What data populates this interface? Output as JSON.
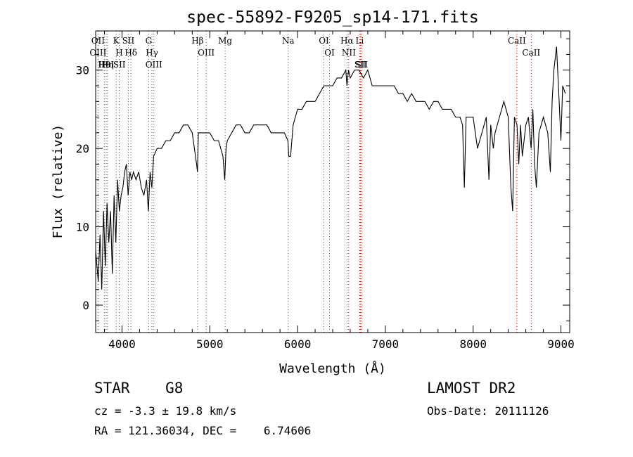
{
  "header": {
    "title": "spec-55892-F9205_sp14-171.fits"
  },
  "chart_data": {
    "type": "line",
    "title": "spec-55892-F9205_sp14-171.fits",
    "xlabel": "Wavelength (Å)",
    "ylabel": "Flux (relative)",
    "xlim": [
      3700,
      9100
    ],
    "ylim": [
      -3.5,
      35
    ],
    "xticks": [
      4000,
      5000,
      6000,
      7000,
      8000,
      9000
    ],
    "yticks": [
      0,
      10,
      20,
      30
    ],
    "grid": false,
    "line_color": "#000000",
    "marker_line_color": "#cc0000",
    "series": [
      {
        "x": [
          3700,
          3730,
          3750,
          3770,
          3790,
          3810,
          3830,
          3850,
          3870,
          3890,
          3910,
          3930,
          3950,
          3970,
          3990,
          4010,
          4030,
          4050,
          4070,
          4090,
          4110,
          4130,
          4160,
          4190,
          4220,
          4250,
          4280,
          4300,
          4320,
          4340,
          4360,
          4400,
          4450,
          4500,
          4550,
          4600,
          4650,
          4700,
          4750,
          4800,
          4850,
          4860,
          4870,
          4900,
          4950,
          5000,
          5050,
          5100,
          5150,
          5170,
          5185,
          5200,
          5250,
          5300,
          5350,
          5400,
          5450,
          5500,
          5550,
          5600,
          5650,
          5700,
          5750,
          5800,
          5850,
          5890,
          5900,
          5920,
          5950,
          6000,
          6050,
          6100,
          6150,
          6200,
          6250,
          6300,
          6350,
          6400,
          6450,
          6500,
          6550,
          6563,
          6580,
          6600,
          6650,
          6700,
          6750,
          6800,
          6850,
          6900,
          6950,
          7000,
          7050,
          7100,
          7150,
          7200,
          7250,
          7300,
          7350,
          7400,
          7450,
          7500,
          7550,
          7600,
          7650,
          7700,
          7750,
          7800,
          7850,
          7880,
          7900,
          7920,
          7950,
          8000,
          8050,
          8100,
          8150,
          8180,
          8200,
          8230,
          8250,
          8300,
          8350,
          8400,
          8430,
          8450,
          8470,
          8500,
          8520,
          8540,
          8560,
          8600,
          8630,
          8660,
          8680,
          8700,
          8720,
          8750,
          8800,
          8850,
          8880,
          8900,
          8920,
          8950,
          8980,
          9000,
          9020,
          9050
        ],
        "y": [
          7,
          3,
          9,
          2,
          12,
          5,
          13,
          8,
          12,
          4,
          14,
          8,
          16,
          12,
          14,
          15,
          17,
          18,
          14,
          17,
          16,
          17,
          16,
          17,
          15,
          14,
          16,
          12,
          17,
          15,
          19,
          20,
          20,
          21,
          21,
          22,
          22,
          23,
          23,
          22,
          18,
          17,
          22,
          22,
          22,
          22,
          21,
          21,
          19,
          16,
          20,
          21,
          22,
          23,
          23,
          22,
          22,
          23,
          23,
          23,
          23,
          22,
          22,
          22,
          22,
          21,
          19,
          19,
          23,
          25,
          25,
          26,
          26,
          26,
          27,
          28,
          28,
          28,
          29,
          29,
          30,
          28,
          30,
          29,
          30,
          30,
          29,
          30,
          28,
          28,
          28,
          28,
          28,
          28,
          27,
          27,
          26,
          27,
          26,
          26,
          26,
          25,
          26,
          26,
          25,
          25,
          25,
          24,
          24,
          23,
          15,
          24,
          24,
          24,
          20,
          22,
          24,
          16,
          23,
          20,
          22,
          24,
          26,
          24,
          15,
          12,
          24,
          23,
          18,
          23,
          19,
          23,
          24,
          20,
          25,
          18,
          15,
          22,
          24,
          22,
          17,
          26,
          30,
          33,
          26,
          21,
          28,
          27
        ]
      }
    ],
    "line_markers": [
      {
        "label": "Hθ",
        "x": 3798
      },
      {
        "label": "OII",
        "x": 3727
      },
      {
        "label": "OIII",
        "x": 3727
      },
      {
        "label": "HeI",
        "x": 3820
      },
      {
        "label": "Hη",
        "x": 3835
      },
      {
        "label": "K",
        "x": 3934
      },
      {
        "label": "SII",
        "x": 3970
      },
      {
        "label": "H",
        "x": 3969
      },
      {
        "label": "Hδ",
        "x": 4102
      },
      {
        "label": "SII",
        "x": 4072
      },
      {
        "label": "OIII",
        "x": 4363
      },
      {
        "label": "Hγ",
        "x": 4341
      },
      {
        "label": "G",
        "x": 4304
      },
      {
        "label": "Hβ",
        "x": 4861
      },
      {
        "label": "OIII",
        "x": 4959
      },
      {
        "label": "Mg",
        "x": 5175
      },
      {
        "label": "Na",
        "x": 5893
      },
      {
        "label": "OI",
        "x": 6300
      },
      {
        "label": "OI",
        "x": 6364
      },
      {
        "label": "Hα",
        "x": 6563
      },
      {
        "label": "NII",
        "x": 6583
      },
      {
        "label": "Li",
        "x": 6708
      },
      {
        "label": "SII",
        "x": 6717
      },
      {
        "label": "SII",
        "x": 6731
      },
      {
        "label": "CaII",
        "x": 8498
      },
      {
        "label": "CaII",
        "x": 8662
      }
    ]
  },
  "info": {
    "star_type": "STAR    G8",
    "survey": "LAMOST DR2",
    "cz": "cz = -3.3 ± 19.8 km/s",
    "obs_date": "Obs-Date: 20111126",
    "radec": "RA = 121.36034, DEC =    6.74606"
  }
}
